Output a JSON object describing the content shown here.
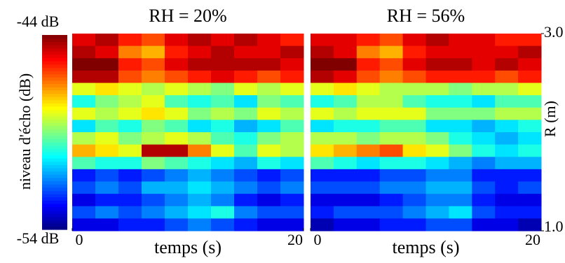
{
  "chart_data": [
    {
      "type": "heatmap",
      "title": "RH = 20%",
      "x_label": "temps (s)",
      "xlim": [
        0,
        20
      ],
      "xticks": [
        0,
        20
      ],
      "ylim": [
        1.0,
        3.0
      ],
      "zlim": [
        -54,
        -44
      ],
      "zticks": [
        {
          "value": -44,
          "label": "-44 dB"
        },
        {
          "value": -54,
          "label": "-54 dB"
        }
      ],
      "z_label": "niveau d'écho (dB)",
      "x": [
        1,
        3,
        5,
        7,
        9,
        11,
        13,
        15,
        17,
        19
      ],
      "y": [
        2.9375,
        2.8125,
        2.6875,
        2.5625,
        2.4375,
        2.3125,
        2.1875,
        2.0625,
        1.9375,
        1.8125,
        1.6875,
        1.5625,
        1.4375,
        1.3125,
        1.1875,
        1.0625
      ],
      "z": [
        [
          -45,
          -44.5,
          -45.5,
          -46,
          -45,
          -44.5,
          -45,
          -44.5,
          -45,
          -45.5
        ],
        [
          -44.5,
          -45,
          -46.5,
          -47,
          -45.5,
          -45,
          -44.5,
          -45,
          -45,
          -44.5
        ],
        [
          -44,
          -44,
          -45.5,
          -46,
          -45,
          -44.5,
          -44.5,
          -44.5,
          -44.5,
          -45
        ],
        [
          -44.5,
          -44.5,
          -46,
          -46.5,
          -46,
          -45.5,
          -45,
          -45.5,
          -46,
          -45.5
        ],
        [
          -48,
          -47.5,
          -48,
          -48.5,
          -48,
          -48.5,
          -49,
          -48,
          -48.5,
          -48
        ],
        [
          -50,
          -49,
          -48.5,
          -48,
          -49.5,
          -50,
          -49.5,
          -50.5,
          -49,
          -49.5
        ],
        [
          -48,
          -48.5,
          -48,
          -47.5,
          -48,
          -49,
          -48.5,
          -49,
          -48,
          -48.5
        ],
        [
          -50.5,
          -49.5,
          -50,
          -49,
          -49.5,
          -50.5,
          -50,
          -51,
          -50.5,
          -49.5
        ],
        [
          -48.5,
          -48,
          -49,
          -48.5,
          -48,
          -48.5,
          -49.5,
          -50,
          -49,
          -48.5
        ],
        [
          -47,
          -47.5,
          -48,
          -44.5,
          -44.5,
          -46.5,
          -48,
          -49.5,
          -48,
          -48.5
        ],
        [
          -49.5,
          -50,
          -50,
          -49,
          -49.5,
          -50,
          -50.5,
          -51,
          -50,
          -50.5
        ],
        [
          -52.5,
          -52,
          -52.5,
          -52,
          -51.5,
          -51,
          -51.5,
          -52,
          -52.5,
          -52
        ],
        [
          -52,
          -51.5,
          -52,
          -51,
          -51,
          -50.5,
          -51,
          -51.5,
          -52,
          -51.5
        ],
        [
          -53,
          -52.5,
          -52.5,
          -52,
          -51.5,
          -51,
          -51.5,
          -52.5,
          -53,
          -52.5
        ],
        [
          -52,
          -51.5,
          -52,
          -51.5,
          -51,
          -50.5,
          -50,
          -51.5,
          -52,
          -52
        ],
        [
          -53,
          -53,
          -52.5,
          -52.5,
          -52,
          -51.5,
          -52,
          -52.5,
          -53,
          -53
        ]
      ]
    },
    {
      "type": "heatmap",
      "title": "RH = 56%",
      "x_label": "temps (s)",
      "y_label": "R (m)",
      "xlim": [
        0,
        20
      ],
      "xticks": [
        0,
        20
      ],
      "ylim": [
        1.0,
        3.0
      ],
      "yticks": [
        {
          "value": 3,
          "label": "3.0"
        },
        {
          "value": 1,
          "label": "1.0"
        }
      ],
      "zlim": [
        -54,
        -44
      ],
      "x": [
        1,
        3,
        5,
        7,
        9,
        11,
        13,
        15,
        17,
        19
      ],
      "y": [
        2.9375,
        2.8125,
        2.6875,
        2.5625,
        2.4375,
        2.3125,
        2.1875,
        2.0625,
        1.9375,
        1.8125,
        1.6875,
        1.5625,
        1.4375,
        1.3125,
        1.1875,
        1.0625
      ],
      "z": [
        [
          -45,
          -45,
          -45.5,
          -46,
          -45,
          -44.5,
          -45,
          -45,
          -45.5,
          -45.5
        ],
        [
          -44.5,
          -45,
          -46.5,
          -47,
          -45.5,
          -45,
          -45,
          -45,
          -45,
          -44.5
        ],
        [
          -44,
          -44,
          -45.5,
          -46,
          -45,
          -44.5,
          -44.5,
          -45,
          -44.5,
          -45
        ],
        [
          -44.5,
          -45,
          -46,
          -46.5,
          -46,
          -45.5,
          -45.5,
          -45.5,
          -46,
          -45.5
        ],
        [
          -48,
          -47.5,
          -48,
          -48.5,
          -48.5,
          -48.5,
          -49,
          -48.5,
          -48.5,
          -48
        ],
        [
          -50,
          -49.5,
          -48.5,
          -48.5,
          -49.5,
          -50,
          -50,
          -50.5,
          -49.5,
          -49.5
        ],
        [
          -48,
          -48.5,
          -48,
          -48,
          -48,
          -49,
          -49,
          -49,
          -48.5,
          -48.5
        ],
        [
          -50.5,
          -50,
          -50,
          -49.5,
          -49.5,
          -50.5,
          -50.5,
          -51,
          -50.5,
          -50
        ],
        [
          -48.5,
          -48.5,
          -49,
          -48.5,
          -48.5,
          -49,
          -50,
          -50.5,
          -51,
          -50.5
        ],
        [
          -47.5,
          -47,
          -46.5,
          -46,
          -47.5,
          -48,
          -49,
          -50,
          -50.5,
          -50
        ],
        [
          -49.5,
          -50,
          -50.5,
          -50,
          -50,
          -50.5,
          -51,
          -51.5,
          -51,
          -51
        ],
        [
          -52.5,
          -52.5,
          -52.5,
          -52,
          -52,
          -51.5,
          -51.5,
          -52.5,
          -52.5,
          -52.5
        ],
        [
          -52,
          -52,
          -52,
          -51.5,
          -51.5,
          -51,
          -51,
          -52,
          -52.5,
          -52
        ],
        [
          -53,
          -53,
          -53,
          -52.5,
          -52,
          -51.5,
          -51.5,
          -52.5,
          -53,
          -53
        ],
        [
          -52.5,
          -52,
          -52,
          -52,
          -51.5,
          -51,
          -50.5,
          -52,
          -52.5,
          -52.5
        ],
        [
          -53.5,
          -53,
          -53,
          -52.5,
          -52.5,
          -52,
          -52,
          -53,
          -53,
          -53.5
        ]
      ]
    }
  ]
}
